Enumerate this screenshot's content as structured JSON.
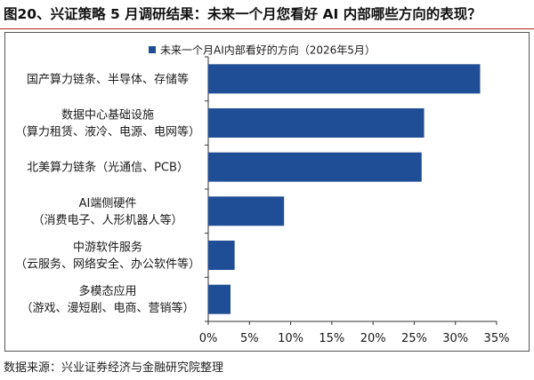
{
  "figure": {
    "title": "图20、兴证策略 5 月调研结果：未来一个月您看好 AI 内部哪些方向的表现？",
    "source": "数据来源：兴业证券经济与金融研究院整理"
  },
  "colors": {
    "bar": "#1f4e96",
    "axis": "#333333",
    "title_rule": "#b22222"
  },
  "chart_data": {
    "type": "bar",
    "orientation": "horizontal",
    "title": "",
    "xlabel": "",
    "ylabel": "",
    "legend_position": "top-left",
    "grid": false,
    "xlim": [
      0,
      0.35
    ],
    "x_ticks": [
      "0%",
      "5%",
      "10%",
      "15%",
      "20%",
      "25%",
      "30%",
      "35%"
    ],
    "categories": [
      [
        "国产算力链条、半导体、存储等"
      ],
      [
        "数据中心基础设施",
        "（算力租赁、液冷、电源、电网等）"
      ],
      [
        "北美算力链条（光通信、PCB）"
      ],
      [
        "AI端侧硬件",
        "（消费电子、人形机器人等）"
      ],
      [
        "中游软件服务",
        "（云服务、网络安全、办公软件等）"
      ],
      [
        "多模态应用",
        "（游戏、漫短剧、电商、营销等）"
      ]
    ],
    "series": [
      {
        "name": "未来一个月AI内部看好的方向（2026年5月）",
        "values": [
          0.33,
          0.262,
          0.259,
          0.092,
          0.032,
          0.027
        ]
      }
    ]
  }
}
